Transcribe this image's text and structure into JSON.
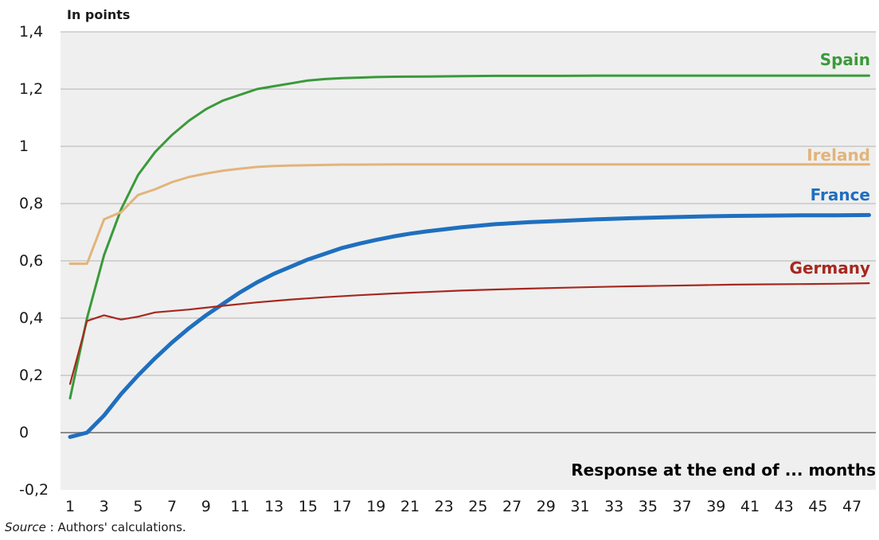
{
  "chart_data": {
    "type": "line",
    "unit_label": "In points",
    "xlabel": "Response at the end of ... months",
    "ylabel": "",
    "ylim": [
      -0.2,
      1.4
    ],
    "xlim": [
      1,
      48
    ],
    "yticks": [
      "1,4",
      "1,2",
      "1",
      "0,8",
      "0,6",
      "0,4",
      "0,2",
      "0",
      "-0,2"
    ],
    "ytick_values": [
      1.4,
      1.2,
      1.0,
      0.8,
      0.6,
      0.4,
      0.2,
      0.0,
      -0.2
    ],
    "xticks": [
      "1",
      "3",
      "5",
      "7",
      "9",
      "11",
      "13",
      "15",
      "17",
      "19",
      "21",
      "23",
      "25",
      "27",
      "29",
      "31",
      "33",
      "35",
      "37",
      "39",
      "41",
      "43",
      "45",
      "47"
    ],
    "xtick_values": [
      1,
      3,
      5,
      7,
      9,
      11,
      13,
      15,
      17,
      19,
      21,
      23,
      25,
      27,
      29,
      31,
      33,
      35,
      37,
      39,
      41,
      43,
      45,
      47
    ],
    "grid": "horizontal",
    "background_color": "#efefef",
    "grid_color": "#b3b3b3",
    "zero_line_color": "#8c8c8c",
    "series": [
      {
        "name": "Spain",
        "color": "#3a9a3a",
        "x": [
          1,
          2,
          3,
          4,
          5,
          6,
          7,
          8,
          9,
          10,
          11,
          12,
          13,
          14,
          15,
          16,
          17,
          18,
          19,
          20,
          22,
          24,
          26,
          28,
          30,
          32,
          34,
          36,
          38,
          40,
          42,
          44,
          46,
          48
        ],
        "values": [
          0.12,
          0.4,
          0.62,
          0.78,
          0.9,
          0.98,
          1.04,
          1.09,
          1.13,
          1.16,
          1.18,
          1.2,
          1.21,
          1.22,
          1.23,
          1.235,
          1.238,
          1.24,
          1.242,
          1.243,
          1.244,
          1.245,
          1.246,
          1.246,
          1.246,
          1.247,
          1.247,
          1.247,
          1.247,
          1.247,
          1.247,
          1.247,
          1.247,
          1.247
        ]
      },
      {
        "name": "Ireland",
        "color": "#e2b47a",
        "x": [
          1,
          2,
          3,
          4,
          5,
          6,
          7,
          8,
          9,
          10,
          11,
          12,
          13,
          14,
          15,
          16,
          17,
          18,
          20,
          22,
          24,
          26,
          28,
          30,
          32,
          34,
          36,
          38,
          40,
          42,
          44,
          46,
          48
        ],
        "values": [
          0.59,
          0.59,
          0.745,
          0.77,
          0.83,
          0.85,
          0.875,
          0.893,
          0.905,
          0.915,
          0.922,
          0.928,
          0.931,
          0.933,
          0.934,
          0.935,
          0.936,
          0.936,
          0.937,
          0.937,
          0.937,
          0.937,
          0.937,
          0.937,
          0.937,
          0.937,
          0.937,
          0.937,
          0.937,
          0.937,
          0.937,
          0.937,
          0.937
        ]
      },
      {
        "name": "France",
        "color": "#1f6fbf",
        "x": [
          1,
          2,
          3,
          4,
          5,
          6,
          7,
          8,
          9,
          10,
          11,
          12,
          13,
          14,
          15,
          16,
          17,
          18,
          19,
          20,
          21,
          22,
          24,
          26,
          28,
          30,
          32,
          34,
          36,
          38,
          40,
          42,
          44,
          46,
          48
        ],
        "values": [
          -0.015,
          0.0,
          0.06,
          0.135,
          0.2,
          0.26,
          0.315,
          0.365,
          0.41,
          0.45,
          0.49,
          0.525,
          0.555,
          0.58,
          0.605,
          0.625,
          0.645,
          0.66,
          0.673,
          0.685,
          0.695,
          0.703,
          0.717,
          0.728,
          0.735,
          0.74,
          0.745,
          0.749,
          0.752,
          0.755,
          0.757,
          0.758,
          0.759,
          0.759,
          0.76
        ]
      },
      {
        "name": "Germany",
        "color": "#a6281f",
        "x": [
          1,
          2,
          3,
          4,
          5,
          6,
          8,
          10,
          12,
          14,
          16,
          18,
          20,
          22,
          24,
          26,
          28,
          30,
          32,
          34,
          36,
          38,
          40,
          42,
          44,
          46,
          48
        ],
        "values": [
          0.17,
          0.39,
          0.41,
          0.395,
          0.405,
          0.42,
          0.43,
          0.443,
          0.455,
          0.465,
          0.473,
          0.48,
          0.486,
          0.491,
          0.496,
          0.5,
          0.503,
          0.506,
          0.509,
          0.511,
          0.513,
          0.515,
          0.517,
          0.518,
          0.519,
          0.52,
          0.522
        ]
      }
    ]
  },
  "source": {
    "label": "Source",
    "text": " : Authors' calculations."
  }
}
